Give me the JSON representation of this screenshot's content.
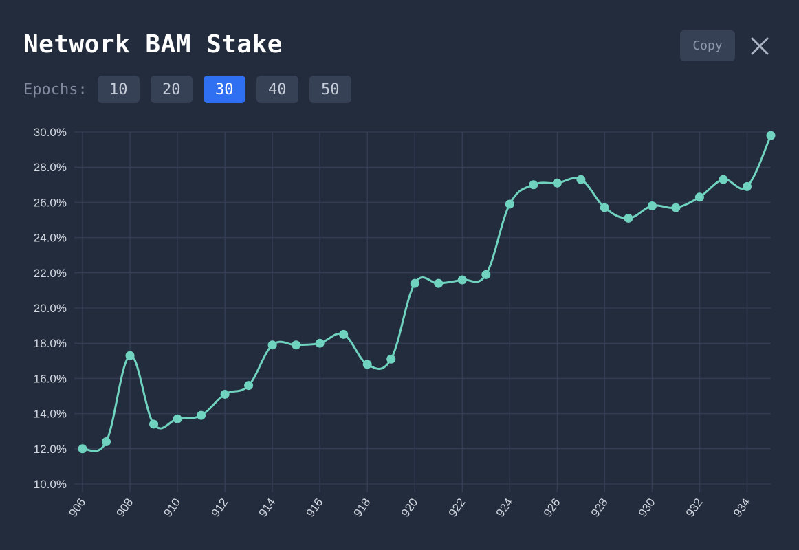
{
  "header": {
    "title": "Network BAM Stake",
    "copy_label": "Copy",
    "close_icon": "close-icon"
  },
  "epochs": {
    "label": "Epochs:",
    "options": [
      "10",
      "20",
      "30",
      "40",
      "50"
    ],
    "selected": "30"
  },
  "colors": {
    "background": "#232c3d",
    "line": "#6fd3bf",
    "grid": "#323c53",
    "accent": "#2f6ff2",
    "button": "#364156"
  },
  "chart_data": {
    "type": "line",
    "x": [
      906,
      907,
      908,
      909,
      910,
      911,
      912,
      913,
      914,
      915,
      916,
      917,
      918,
      919,
      920,
      921,
      922,
      923,
      924,
      925,
      926,
      927,
      928,
      929,
      930,
      931,
      932,
      933,
      934,
      935
    ],
    "values": [
      12.0,
      12.4,
      17.3,
      13.4,
      13.7,
      13.9,
      15.1,
      15.6,
      17.9,
      17.9,
      18.0,
      18.5,
      16.8,
      17.1,
      21.4,
      21.4,
      21.6,
      21.9,
      25.9,
      27.0,
      27.1,
      27.3,
      25.7,
      25.1,
      25.8,
      25.7,
      26.3,
      27.3,
      26.9,
      29.8
    ],
    "x_tick_labels": [
      "906",
      "908",
      "910",
      "912",
      "914",
      "916",
      "918",
      "920",
      "922",
      "924",
      "926",
      "928",
      "930",
      "932",
      "934"
    ],
    "y_tick_labels": [
      "10.0%",
      "12.0%",
      "14.0%",
      "16.0%",
      "18.0%",
      "20.0%",
      "22.0%",
      "24.0%",
      "26.0%",
      "28.0%",
      "30.0%"
    ],
    "ylim": [
      10,
      30
    ],
    "xlim": [
      906,
      935
    ],
    "y_unit": "%",
    "grid": true,
    "legend": "none",
    "title": "Network BAM Stake",
    "xlabel": "",
    "ylabel": ""
  }
}
